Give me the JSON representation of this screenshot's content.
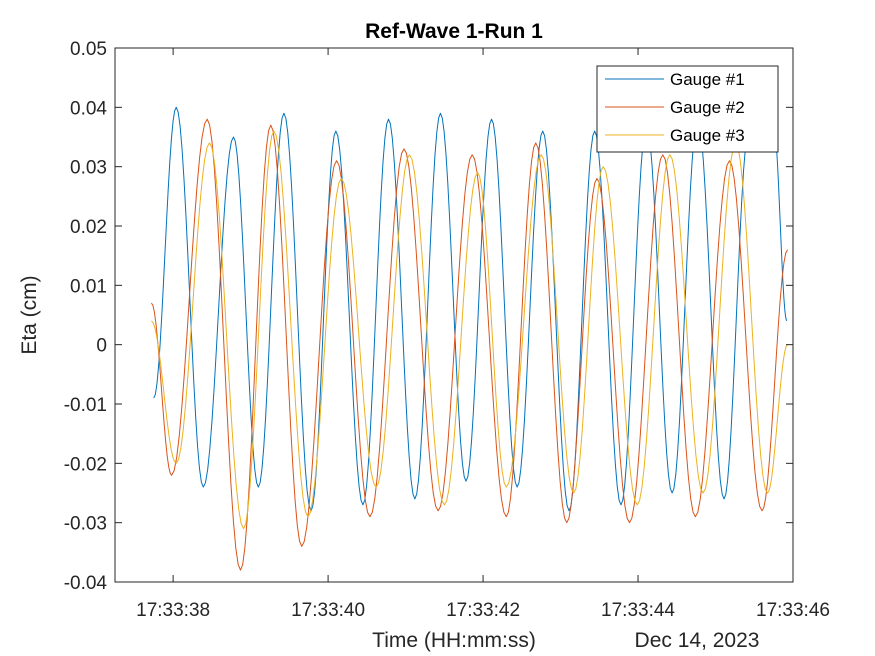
{
  "chart_data": {
    "type": "line",
    "title": "Ref-Wave 1-Run 1",
    "xlabel": "Time (HH:mm:ss)",
    "ylabel": "Eta (cm)",
    "date_label": "Dec 14, 2023",
    "xlim": [
      "17:33:37.25",
      "17:33:46.00"
    ],
    "ylim": [
      -0.04,
      0.05
    ],
    "x_ticks": [
      "17:33:38",
      "17:33:40",
      "17:33:42",
      "17:33:44",
      "17:33:46"
    ],
    "y_ticks": [
      "0.05",
      "0.04",
      "0.03",
      "0.02",
      "0.01",
      "0",
      "-0.01",
      "-0.02",
      "-0.03",
      "-0.04"
    ],
    "grid": false,
    "legend_position": "top-right",
    "series": [
      {
        "name": "Gauge #1",
        "color": "#0072BD",
        "x": [
          "17:33:37.75",
          "17:33:38.04",
          "17:33:38.39",
          "17:33:38.78",
          "17:33:39.10",
          "17:33:39.43",
          "17:33:39.78",
          "17:33:40.10",
          "17:33:40.45",
          "17:33:40.78",
          "17:33:41.12",
          "17:33:41.45",
          "17:33:41.78",
          "17:33:42.11",
          "17:33:42.44",
          "17:33:42.77",
          "17:33:43.11",
          "17:33:43.44",
          "17:33:43.78",
          "17:33:44.11",
          "17:33:44.44",
          "17:33:44.77",
          "17:33:45.11",
          "17:33:45.43",
          "17:33:45.75",
          "17:33:45.92"
        ],
        "y": [
          -0.009,
          0.04,
          -0.024,
          0.035,
          -0.024,
          0.039,
          -0.028,
          0.036,
          -0.027,
          0.038,
          -0.026,
          0.039,
          -0.023,
          0.038,
          -0.024,
          0.036,
          -0.028,
          0.036,
          -0.027,
          0.037,
          -0.025,
          0.038,
          -0.026,
          0.036,
          0.037,
          0.004
        ]
      },
      {
        "name": "Gauge #2",
        "color": "#D95319",
        "x": [
          "17:33:37.72",
          "17:33:37.98",
          "17:33:38.44",
          "17:33:38.87",
          "17:33:39.26",
          "17:33:39.66",
          "17:33:40.11",
          "17:33:40.54",
          "17:33:40.98",
          "17:33:41.42",
          "17:33:41.86",
          "17:33:42.30",
          "17:33:42.68",
          "17:33:43.08",
          "17:33:43.47",
          "17:33:43.89",
          "17:33:44.32",
          "17:33:44.74",
          "17:33:45.18",
          "17:33:45.60",
          "17:33:45.93"
        ],
        "y": [
          0.007,
          -0.022,
          0.038,
          -0.038,
          0.037,
          -0.034,
          0.031,
          -0.029,
          0.033,
          -0.028,
          0.032,
          -0.029,
          0.034,
          -0.03,
          0.028,
          -0.03,
          0.032,
          -0.029,
          0.031,
          -0.028,
          0.016
        ]
      },
      {
        "name": "Gauge #3",
        "color": "#EDB120",
        "x": [
          "17:33:37.72",
          "17:33:38.04",
          "17:33:38.47",
          "17:33:38.91",
          "17:33:39.30",
          "17:33:39.74",
          "17:33:40.17",
          "17:33:40.62",
          "17:33:41.05",
          "17:33:41.50",
          "17:33:41.93",
          "17:33:42.30",
          "17:33:42.75",
          "17:33:43.17",
          "17:33:43.55",
          "17:33:43.99",
          "17:33:44.41",
          "17:33:44.84",
          "17:33:45.26",
          "17:33:45.67",
          "17:33:45.93"
        ],
        "y": [
          0.004,
          -0.02,
          0.034,
          -0.031,
          0.036,
          -0.029,
          0.028,
          -0.024,
          0.032,
          -0.027,
          0.029,
          -0.024,
          0.032,
          -0.025,
          0.03,
          -0.027,
          0.032,
          -0.025,
          0.034,
          -0.025,
          0.0
        ]
      }
    ]
  }
}
